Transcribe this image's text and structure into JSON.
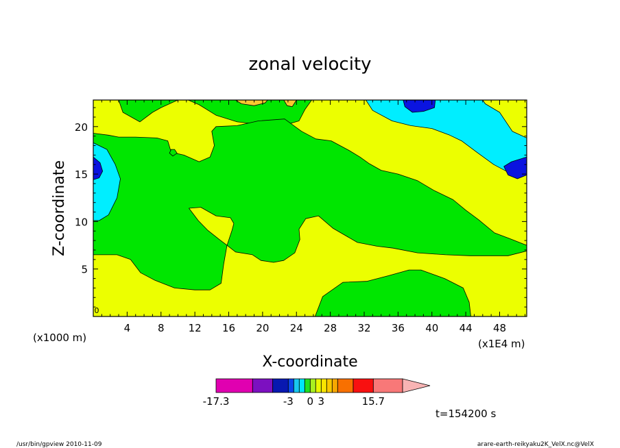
{
  "chart_data": {
    "type": "heatmap",
    "title": "zonal velocity",
    "xlabel": "X-coordinate",
    "ylabel": "Z-coordinate",
    "x_unit_left": "(x1000 m)",
    "x_unit_right": "(x1E4 m)",
    "xlim": [
      0,
      51.2
    ],
    "ylim": [
      0,
      22.8
    ],
    "x_ticks": [
      4,
      8,
      12,
      16,
      20,
      24,
      28,
      32,
      36,
      40,
      44,
      48
    ],
    "y_ticks": [
      5,
      10,
      15,
      20
    ],
    "regions": [
      {
        "level": "yellow",
        "points": [
          [
            0,
            0
          ],
          [
            51.2,
            0
          ],
          [
            51.2,
            22.8
          ],
          [
            0,
            22.8
          ]
        ]
      },
      {
        "level": "green",
        "points": [
          [
            3,
            22.8
          ],
          [
            3.5,
            21.5
          ],
          [
            5.5,
            20.5
          ],
          [
            7,
            21.5
          ],
          [
            8,
            22
          ],
          [
            10,
            22.8
          ]
        ]
      },
      {
        "level": "green",
        "points": [
          [
            11.2,
            22.8
          ],
          [
            12.5,
            22.3
          ],
          [
            14.5,
            21.2
          ],
          [
            17,
            20.5
          ],
          [
            20,
            20.2
          ],
          [
            22,
            20
          ],
          [
            24.3,
            20.6
          ],
          [
            25,
            21.8
          ],
          [
            25.8,
            22.8
          ]
        ]
      },
      {
        "level": "green",
        "points": [
          [
            0,
            19.3
          ],
          [
            1.8,
            19.1
          ],
          [
            3,
            18.9
          ],
          [
            5,
            18.9
          ],
          [
            7.5,
            18.8
          ],
          [
            8.8,
            18.5
          ],
          [
            9.2,
            17.3
          ],
          [
            10.7,
            17
          ],
          [
            12.5,
            16.3
          ],
          [
            13.8,
            16.8
          ],
          [
            14.3,
            18
          ],
          [
            14,
            19.5
          ],
          [
            14.5,
            20
          ],
          [
            17,
            20.1
          ],
          [
            19.5,
            20.6
          ],
          [
            22.6,
            20.8
          ],
          [
            24.6,
            19.5
          ],
          [
            26.3,
            18.7
          ],
          [
            28.1,
            18.5
          ],
          [
            30.2,
            17.5
          ],
          [
            31.5,
            16.8
          ],
          [
            32.6,
            16.1
          ],
          [
            34,
            15.4
          ],
          [
            36,
            15
          ],
          [
            38.3,
            14.3
          ],
          [
            40.2,
            13.3
          ],
          [
            42.5,
            12.3
          ],
          [
            44,
            11.2
          ],
          [
            45.5,
            10.2
          ],
          [
            47.4,
            8.8
          ],
          [
            49.2,
            8.2
          ],
          [
            51.2,
            7.5
          ],
          [
            51.2,
            6.9
          ],
          [
            49,
            6.4
          ],
          [
            46.5,
            6.4
          ],
          [
            44.5,
            6.4
          ],
          [
            41.6,
            6.5
          ],
          [
            38.3,
            6.7
          ],
          [
            35.4,
            7.2
          ],
          [
            33.5,
            7.4
          ],
          [
            31.2,
            7.8
          ],
          [
            28.3,
            9.3
          ],
          [
            26.6,
            10.6
          ],
          [
            25.1,
            10.3
          ],
          [
            24.3,
            9.2
          ],
          [
            24.4,
            8.1
          ],
          [
            23.8,
            6.7
          ],
          [
            22.5,
            5.9
          ],
          [
            21.3,
            5.7
          ],
          [
            19.8,
            5.9
          ],
          [
            18.8,
            6.5
          ],
          [
            16.8,
            6.8
          ],
          [
            15.8,
            7.5
          ],
          [
            16.4,
            9.1
          ],
          [
            16.6,
            9.8
          ],
          [
            16.2,
            10.4
          ],
          [
            14.5,
            10.6
          ],
          [
            12.7,
            11.5
          ],
          [
            11.3,
            11.4
          ],
          [
            12.4,
            10.1
          ],
          [
            13.5,
            9.1
          ],
          [
            14.9,
            8.1
          ],
          [
            15.8,
            7.5
          ],
          [
            15.4,
            5.5
          ],
          [
            15.1,
            3.5
          ],
          [
            13.8,
            2.8
          ],
          [
            12,
            2.8
          ],
          [
            9.6,
            3
          ],
          [
            7.3,
            3.8
          ],
          [
            5.6,
            4.6
          ],
          [
            4.4,
            6
          ],
          [
            2.8,
            6.5
          ],
          [
            0,
            6.5
          ]
        ]
      },
      {
        "level": "green",
        "points": [
          [
            26.2,
            0
          ],
          [
            27.1,
            2.1
          ],
          [
            29.5,
            3.6
          ],
          [
            32.3,
            3.7
          ],
          [
            34.9,
            4.3
          ],
          [
            37.3,
            4.9
          ],
          [
            38.7,
            4.9
          ],
          [
            41.5,
            4
          ],
          [
            43.7,
            3
          ],
          [
            44.4,
            1.5
          ],
          [
            44.6,
            0
          ]
        ]
      },
      {
        "level": "green",
        "points": [
          [
            9,
            17.2
          ],
          [
            9.4,
            16.9
          ],
          [
            9.9,
            17.2
          ],
          [
            9.6,
            17.6
          ],
          [
            9.2,
            17.6
          ]
        ]
      },
      {
        "level": "cyan",
        "points": [
          [
            32.2,
            22.8
          ],
          [
            33,
            21.7
          ],
          [
            35.3,
            20.6
          ],
          [
            37.5,
            20.1
          ],
          [
            40,
            19.8
          ],
          [
            42.1,
            19.1
          ],
          [
            43.5,
            18.5
          ],
          [
            45.3,
            17.3
          ],
          [
            47.3,
            16
          ],
          [
            49,
            15.2
          ],
          [
            51.2,
            14.9
          ],
          [
            51.2,
            18.8
          ],
          [
            49.5,
            19.5
          ],
          [
            48,
            21.5
          ],
          [
            46.3,
            22.4
          ],
          [
            46,
            22.8
          ]
        ]
      },
      {
        "level": "cyan",
        "points": [
          [
            0,
            18.3
          ],
          [
            1.6,
            17.6
          ],
          [
            2.6,
            16
          ],
          [
            3.2,
            14.5
          ],
          [
            2.8,
            12.5
          ],
          [
            1.8,
            10.7
          ],
          [
            0.7,
            10.1
          ],
          [
            0,
            10.1
          ]
        ]
      },
      {
        "level": "blue",
        "points": [
          [
            36.6,
            22.8
          ],
          [
            36.8,
            22.1
          ],
          [
            37.7,
            21.5
          ],
          [
            39,
            21.6
          ],
          [
            40.3,
            22
          ],
          [
            40.4,
            22.8
          ]
        ]
      },
      {
        "level": "blue",
        "points": [
          [
            51.2,
            16.8
          ],
          [
            49.4,
            16.3
          ],
          [
            48.5,
            15.8
          ],
          [
            49,
            14.9
          ],
          [
            50.1,
            14.5
          ],
          [
            51.2,
            14.9
          ]
        ]
      },
      {
        "level": "blue",
        "points": [
          [
            0,
            16.8
          ],
          [
            0.8,
            16.2
          ],
          [
            1.1,
            15.3
          ],
          [
            0.7,
            14.6
          ],
          [
            0,
            14.4
          ]
        ]
      },
      {
        "level": "light-orange",
        "points": [
          [
            16.8,
            22.8
          ],
          [
            17.5,
            22.4
          ],
          [
            19,
            22.2
          ],
          [
            20.3,
            22.5
          ],
          [
            20.6,
            22.8
          ]
        ]
      },
      {
        "level": "light-orange",
        "points": [
          [
            22.5,
            22.8
          ],
          [
            22.9,
            22.2
          ],
          [
            23.5,
            22.1
          ],
          [
            24,
            22.8
          ]
        ]
      }
    ],
    "colorbar": {
      "segments": [
        {
          "color": "#e000b0",
          "weight": 2
        },
        {
          "color": "#7c10c0",
          "weight": 1.1
        },
        {
          "color": "#0818b0",
          "weight": 0.85
        },
        {
          "color": "#0a46e8",
          "weight": 0.3
        },
        {
          "color": "#18c8f0",
          "weight": 0.3
        },
        {
          "color": "#00e6f8",
          "weight": 0.3
        },
        {
          "color": "#20e020",
          "weight": 0.3
        },
        {
          "color": "#a8f020",
          "weight": 0.3
        },
        {
          "color": "#e8f800",
          "weight": 0.3
        },
        {
          "color": "#f8e400",
          "weight": 0.3
        },
        {
          "color": "#f8c800",
          "weight": 0.3
        },
        {
          "color": "#f8a800",
          "weight": 0.3
        },
        {
          "color": "#f87000",
          "weight": 0.85
        },
        {
          "color": "#f81010",
          "weight": 1.1
        },
        {
          "color": "#f87878",
          "weight": 1.6
        }
      ],
      "extension_color": "#f8b4b4",
      "labels": [
        "-17.3",
        "-3",
        "0",
        "3",
        "15.7"
      ]
    },
    "timestamp": "t=154200 s",
    "corner_mark": "0"
  },
  "colors": {
    "yellow": "#ecff00",
    "green": "#00e600",
    "cyan": "#00eeff",
    "blue": "#0a14e0",
    "light-orange": "#f8c830",
    "frame": "#000000",
    "background": "#ffffff"
  },
  "footer": {
    "left": "/usr/bin/gpview   2010-11-09",
    "right": "arare-earth-reikyaku2K_VelX.nc@VelX"
  }
}
